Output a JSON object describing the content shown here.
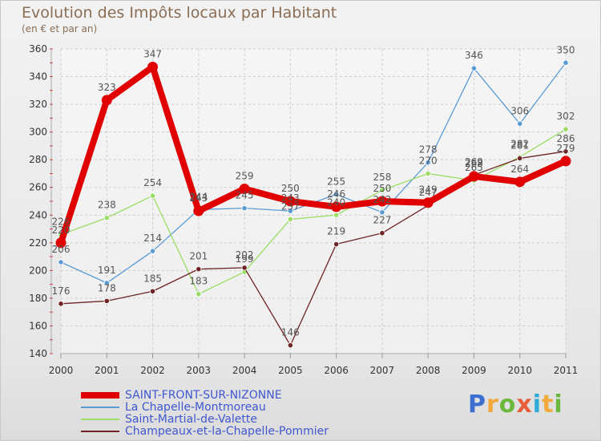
{
  "title": "Evolution des Impôts locaux par Habitant",
  "subtitle": "(en € et par an)",
  "logo": {
    "text": "Proxiti",
    "letters": [
      {
        "ch": "P",
        "color": "#3d6fd1"
      },
      {
        "ch": "r",
        "color": "#f0a93a"
      },
      {
        "ch": "o",
        "color": "#6cb83c"
      },
      {
        "ch": "x",
        "color": "#e85d3a"
      },
      {
        "ch": "i",
        "color": "#2fa9d6"
      },
      {
        "ch": "t",
        "color": "#f0a93a"
      },
      {
        "ch": "i",
        "color": "#6cb83c"
      }
    ]
  },
  "chart_data": {
    "type": "line",
    "title": "Evolution des Impôts locaux par Habitant",
    "subtitle": "(en € et par an)",
    "xlabel": "",
    "ylabel": "",
    "categories": [
      "2000",
      "2001",
      "2002",
      "2003",
      "2004",
      "2005",
      "2006",
      "2007",
      "2008",
      "2009",
      "2010",
      "2011"
    ],
    "ylim": [
      140,
      360
    ],
    "yticks": [
      140,
      160,
      180,
      200,
      220,
      240,
      260,
      280,
      300,
      320,
      340,
      360
    ],
    "grid": true,
    "legend_position": "bottom-left",
    "series": [
      {
        "name": "SAINT-FRONT-SUR-NIZONNE",
        "color": "#e00000",
        "values": [
          220,
          323,
          347,
          243,
          259,
          250,
          246,
          250,
          249,
          268,
          264,
          279
        ],
        "labels": [
          "220",
          "323",
          "347",
          "243",
          "259",
          "250",
          "246",
          "250",
          "249",
          "268",
          "264",
          "279"
        ]
      },
      {
        "name": "La Chapelle-Montmoreau",
        "color": "#5b9bd5",
        "values": [
          206,
          191,
          214,
          244,
          245,
          243,
          255,
          242,
          278,
          346,
          306,
          350
        ],
        "labels": [
          "206",
          "191",
          "214",
          "244",
          "245",
          "243",
          "255",
          "242",
          "278",
          "346",
          "306",
          "350"
        ]
      },
      {
        "name": "Saint-Martial-de-Valette",
        "color": "#99dd66",
        "values": [
          226,
          238,
          254,
          183,
          199,
          237,
          240,
          258,
          270,
          265,
          282,
          302
        ],
        "labels": [
          "226",
          "238",
          "254",
          "183",
          "199",
          "237",
          "240",
          "258",
          "270",
          "265",
          "282",
          "302"
        ]
      },
      {
        "name": "Champeaux-et-la-Chapelle-Pommier",
        "color": "#6e2424",
        "values": [
          176,
          178,
          185,
          201,
          202,
          146,
          219,
          227,
          247,
          269,
          281,
          286
        ],
        "labels": [
          "176",
          "178",
          "185",
          "201",
          "202",
          "146",
          "219",
          "227",
          "247",
          "269",
          "281",
          "286"
        ]
      }
    ]
  }
}
